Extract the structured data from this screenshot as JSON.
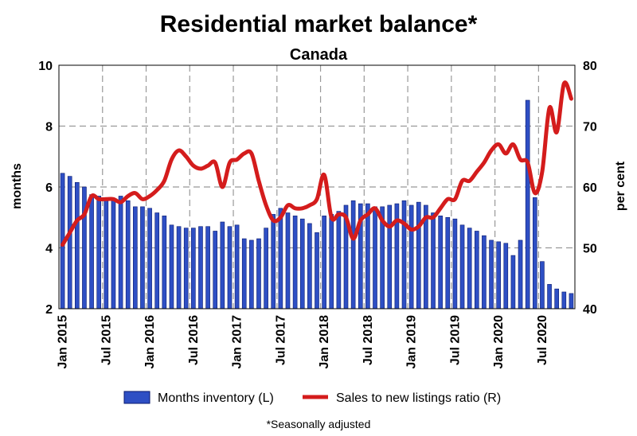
{
  "chart_data": {
    "type": "bar+line",
    "title": "Residential market balance*",
    "subtitle": "Canada",
    "footnote": "*Seasonally adjusted",
    "ylabel_left": "months",
    "ylabel_right": "per cent",
    "ylim_left": [
      2,
      10
    ],
    "ylim_right": [
      40,
      80
    ],
    "yticks_left": [
      "2",
      "4",
      "6",
      "8",
      "10"
    ],
    "yticks_right": [
      "40",
      "50",
      "60",
      "70",
      "80"
    ],
    "grid": true,
    "legend_position": "bottom",
    "x_tick_labels": [
      "Jan 2015",
      "Jul 2015",
      "Jan 2016",
      "Jul 2016",
      "Jan 2017",
      "Jul 2017",
      "Jan 2018",
      "Jul 2018",
      "Jan 2019",
      "Jul 2019",
      "Jan 2020",
      "Jul 2020"
    ],
    "series": [
      {
        "name": "Months inventory (L)",
        "type": "bar",
        "axis": "left",
        "color": "#2e4fc4",
        "values": [
          6.45,
          6.35,
          6.15,
          6.0,
          5.75,
          5.7,
          5.65,
          5.6,
          5.7,
          5.55,
          5.35,
          5.35,
          5.3,
          5.15,
          5.05,
          4.75,
          4.7,
          4.65,
          4.65,
          4.7,
          4.7,
          4.55,
          4.85,
          4.7,
          4.75,
          4.3,
          4.25,
          4.3,
          4.65,
          5.1,
          5.3,
          5.15,
          5.05,
          4.95,
          4.8,
          4.5,
          5.05,
          5.1,
          5.2,
          5.4,
          5.55,
          5.45,
          5.45,
          5.35,
          5.35,
          5.4,
          5.45,
          5.55,
          5.4,
          5.5,
          5.4,
          5.15,
          5.05,
          5.0,
          4.95,
          4.75,
          4.65,
          4.55,
          4.4,
          4.25,
          4.2,
          4.15,
          3.75,
          4.25,
          8.85,
          5.65,
          3.55,
          2.8,
          2.65,
          2.55,
          2.5
        ]
      },
      {
        "name": "Sales to new listings ratio (R)",
        "type": "line",
        "axis": "right",
        "color": "#d41c1c",
        "values": [
          50.5,
          52.5,
          54.5,
          55.5,
          58.5,
          58.0,
          58.0,
          58.0,
          57.5,
          58.5,
          59.0,
          58.0,
          58.5,
          59.5,
          61.0,
          64.5,
          66.0,
          65.0,
          63.5,
          63.0,
          63.5,
          64.0,
          60.0,
          64.0,
          64.5,
          65.5,
          65.5,
          61.0,
          57.0,
          54.5,
          55.0,
          57.0,
          56.5,
          56.5,
          57.0,
          58.0,
          62.0,
          55.0,
          55.5,
          55.0,
          51.5,
          54.5,
          55.5,
          56.5,
          54.5,
          53.5,
          54.5,
          54.0,
          53.0,
          53.5,
          55.0,
          55.0,
          56.5,
          58.0,
          58.0,
          61.0,
          61.0,
          62.5,
          64.0,
          66.0,
          67.0,
          65.5,
          67.0,
          64.5,
          64.0,
          59.0,
          62.5,
          73.0,
          69.0,
          77.0,
          74.5
        ]
      }
    ]
  }
}
